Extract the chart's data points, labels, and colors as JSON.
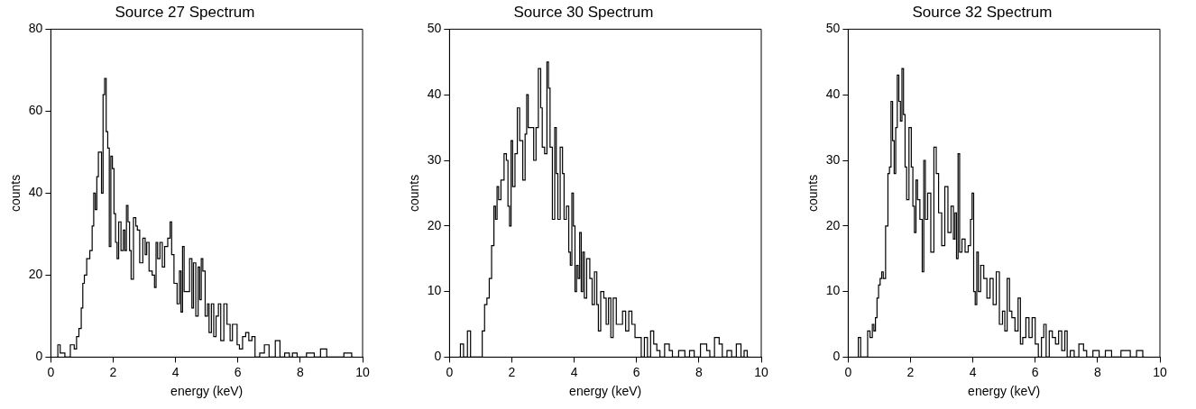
{
  "chart_data": [
    {
      "type": "step",
      "title": "Source 27 Spectrum",
      "xlabel": "energy (keV)",
      "ylabel": "counts",
      "xlim": [
        0,
        10
      ],
      "xticks": [
        0,
        2,
        4,
        6,
        8,
        10
      ],
      "ylim": [
        0,
        80
      ],
      "yticks": [
        0,
        20,
        40,
        60,
        80
      ],
      "x": [
        0.2,
        0.25,
        0.35,
        0.55,
        0.7,
        0.8,
        0.85,
        0.95,
        1.0,
        1.05,
        1.1,
        1.2,
        1.3,
        1.35,
        1.4,
        1.45,
        1.5,
        1.55,
        1.6,
        1.65,
        1.7,
        1.75,
        1.8,
        1.85,
        1.9,
        1.95,
        2.0,
        2.05,
        2.1,
        2.15,
        2.2,
        2.3,
        2.35,
        2.4,
        2.45,
        2.5,
        2.55,
        2.6,
        2.7,
        2.75,
        2.8,
        2.9,
        3.0,
        3.05,
        3.1,
        3.2,
        3.3,
        3.35,
        3.4,
        3.45,
        3.55,
        3.6,
        3.7,
        3.8,
        3.85,
        3.9,
        4.0,
        4.1,
        4.15,
        4.2,
        4.25,
        4.3,
        4.4,
        4.5,
        4.55,
        4.6,
        4.7,
        4.75,
        4.8,
        4.85,
        4.9,
        5.0,
        5.05,
        5.1,
        5.2,
        5.25,
        5.35,
        5.4,
        5.5,
        5.6,
        5.7,
        5.8,
        5.85,
        5.95,
        6.0,
        6.1,
        6.2,
        6.3,
        6.4,
        6.5,
        6.6,
        6.8,
        6.9,
        7.1,
        7.3,
        7.4,
        7.6,
        7.7,
        7.8,
        8.0,
        8.4,
        8.5,
        8.8,
        8.9,
        9.2,
        9.6,
        9.7
      ],
      "series": [
        {
          "color": "#000000",
          "values": [
            0,
            3,
            1,
            0,
            3,
            2,
            5,
            7,
            12,
            18,
            20,
            24,
            26,
            32,
            40,
            36,
            44,
            50,
            50,
            40,
            64,
            68,
            55,
            51,
            27,
            49,
            46,
            35,
            28,
            24,
            33,
            26,
            31,
            26,
            37,
            33,
            26,
            19,
            34,
            32,
            31,
            23,
            29,
            25,
            28,
            21,
            20,
            17,
            28,
            24,
            28,
            22,
            27,
            29,
            33,
            25,
            18,
            13,
            21,
            11,
            27,
            16,
            16,
            24,
            12,
            23,
            10,
            22,
            14,
            24,
            21,
            10,
            13,
            6,
            13,
            5,
            10,
            13,
            4,
            13,
            8,
            4,
            8,
            8,
            3,
            2,
            5,
            6,
            4,
            5,
            0,
            1,
            3,
            0,
            4,
            0,
            1,
            0,
            1,
            0,
            1,
            0,
            2,
            0,
            0,
            1,
            0
          ]
        }
      ]
    },
    {
      "type": "step",
      "title": "Source 30 Spectrum",
      "xlabel": "energy (keV)",
      "ylabel": "counts",
      "xlim": [
        0,
        10
      ],
      "xticks": [
        0,
        2,
        4,
        6,
        8,
        10
      ],
      "ylim": [
        0,
        50
      ],
      "yticks": [
        0,
        10,
        20,
        30,
        40,
        50
      ],
      "x": [
        0.3,
        0.4,
        0.5,
        0.65,
        0.7,
        1.0,
        1.1,
        1.15,
        1.25,
        1.3,
        1.4,
        1.45,
        1.5,
        1.55,
        1.6,
        1.7,
        1.8,
        1.85,
        1.9,
        1.95,
        2.0,
        2.05,
        2.15,
        2.2,
        2.3,
        2.4,
        2.45,
        2.5,
        2.55,
        2.65,
        2.75,
        2.8,
        2.9,
        2.95,
        3.0,
        3.1,
        3.15,
        3.2,
        3.25,
        3.35,
        3.4,
        3.45,
        3.5,
        3.6,
        3.65,
        3.7,
        3.8,
        3.85,
        3.9,
        3.95,
        4.0,
        4.05,
        4.1,
        4.15,
        4.2,
        4.25,
        4.3,
        4.35,
        4.45,
        4.55,
        4.6,
        4.7,
        4.75,
        4.8,
        4.9,
        5.0,
        5.05,
        5.15,
        5.2,
        5.3,
        5.4,
        5.5,
        5.6,
        5.7,
        5.8,
        5.9,
        6.0,
        6.1,
        6.2,
        6.3,
        6.4,
        6.5,
        6.6,
        6.7,
        6.8,
        7.0,
        7.1,
        7.2,
        7.5,
        7.6,
        7.8,
        7.9,
        8.2,
        8.3,
        8.4,
        8.6,
        8.7,
        8.8,
        9.0,
        9.1,
        9.3,
        9.4,
        9.5,
        9.6
      ],
      "series": [
        {
          "color": "#000000",
          "values": [
            0,
            2,
            0,
            4,
            0,
            0,
            4,
            8,
            9,
            12,
            17,
            23,
            21,
            26,
            24,
            27,
            31,
            30,
            23,
            20,
            33,
            26,
            31,
            38,
            33,
            27,
            34,
            40,
            35,
            35,
            30,
            35,
            44,
            38,
            32,
            31,
            45,
            41,
            32,
            21,
            35,
            28,
            21,
            32,
            28,
            21,
            23,
            16,
            14,
            25,
            20,
            10,
            14,
            12,
            19,
            10,
            16,
            9,
            15,
            12,
            8,
            13,
            8,
            4,
            10,
            9,
            5,
            9,
            3,
            9,
            5,
            5,
            7,
            4,
            7,
            5,
            3,
            3,
            0,
            3,
            0,
            4,
            2,
            1,
            0,
            2,
            1,
            0,
            1,
            0,
            1,
            0,
            2,
            1,
            0,
            3,
            2,
            0,
            1,
            0,
            2,
            0,
            1,
            0
          ]
        }
      ]
    },
    {
      "type": "step",
      "title": "Source 32 Spectrum",
      "xlabel": "energy (keV)",
      "ylabel": "counts",
      "xlim": [
        0,
        10
      ],
      "xticks": [
        0,
        2,
        4,
        6,
        8,
        10
      ],
      "ylim": [
        0,
        50
      ],
      "yticks": [
        0,
        10,
        20,
        30,
        40,
        50
      ],
      "x": [
        0.3,
        0.35,
        0.45,
        0.6,
        0.65,
        0.75,
        0.8,
        0.85,
        0.9,
        0.95,
        1.0,
        1.05,
        1.1,
        1.15,
        1.25,
        1.3,
        1.35,
        1.4,
        1.45,
        1.5,
        1.55,
        1.6,
        1.65,
        1.7,
        1.75,
        1.8,
        1.85,
        1.9,
        2.0,
        2.05,
        2.1,
        2.15,
        2.2,
        2.25,
        2.35,
        2.4,
        2.45,
        2.5,
        2.6,
        2.7,
        2.8,
        2.85,
        2.95,
        3.05,
        3.15,
        3.25,
        3.35,
        3.4,
        3.45,
        3.5,
        3.55,
        3.6,
        3.7,
        3.8,
        3.9,
        3.95,
        4.0,
        4.05,
        4.1,
        4.15,
        4.2,
        4.3,
        4.4,
        4.5,
        4.6,
        4.7,
        4.8,
        4.9,
        5.0,
        5.05,
        5.15,
        5.2,
        5.3,
        5.4,
        5.5,
        5.55,
        5.65,
        5.75,
        5.85,
        5.95,
        6.05,
        6.15,
        6.25,
        6.3,
        6.4,
        6.5,
        6.6,
        6.7,
        6.8,
        6.9,
        7.0,
        7.05,
        7.2,
        7.3,
        7.5,
        7.6,
        7.7,
        8.0,
        8.1,
        8.4,
        8.5,
        9.0,
        9.1,
        9.4,
        9.5
      ],
      "series": [
        {
          "color": "#000000",
          "values": [
            0,
            3,
            0,
            0,
            4,
            3,
            5,
            4,
            6,
            9,
            11,
            12,
            13,
            12,
            20,
            28,
            29,
            39,
            33,
            28,
            35,
            43,
            39,
            36,
            44,
            37,
            29,
            24,
            35,
            29,
            23,
            19,
            27,
            24,
            21,
            13,
            30,
            21,
            25,
            16,
            32,
            28,
            22,
            17,
            26,
            19,
            23,
            18,
            22,
            15,
            31,
            16,
            18,
            16,
            17,
            21,
            25,
            10,
            8,
            16,
            10,
            14,
            12,
            9,
            12,
            8,
            13,
            5,
            7,
            4,
            12,
            7,
            6,
            4,
            9,
            2,
            3,
            6,
            3,
            6,
            2,
            0,
            3,
            5,
            0,
            4,
            3,
            2,
            4,
            1,
            4,
            0,
            1,
            0,
            2,
            1,
            0,
            1,
            0,
            1,
            0,
            1,
            0,
            1,
            0
          ]
        }
      ]
    }
  ]
}
